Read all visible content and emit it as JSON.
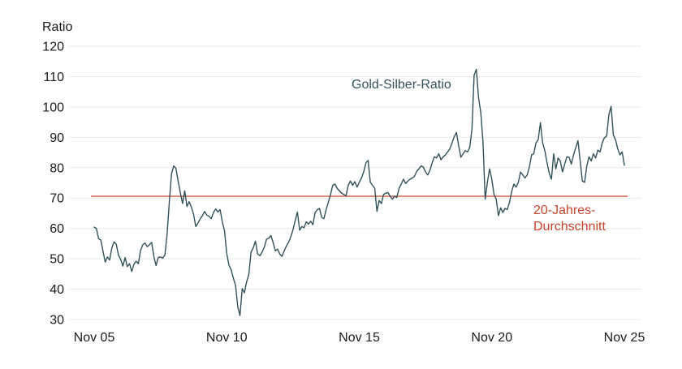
{
  "figure": {
    "background": "#ffffff"
  },
  "chart_data": {
    "type": "line",
    "title": "",
    "ylabel": "Ratio",
    "xlabel": "",
    "grid": true,
    "legend_position": "inline-annotation",
    "ylim": [
      30,
      120
    ],
    "yticks": [
      30,
      40,
      50,
      60,
      70,
      80,
      90,
      100,
      110,
      120
    ],
    "x_tick_labels": [
      "Nov 05",
      "Nov 10",
      "Nov 15",
      "Nov 20",
      "Nov 25"
    ],
    "colors": {
      "series": "#33515a",
      "average": "#c7452d",
      "grid": "#e9e9e9",
      "ticks": "#1a1a1a"
    },
    "average_line": {
      "value": 70.6,
      "label": "20-Jahres-\nDurchschnitt",
      "color": "#c7452d"
    },
    "series": [
      {
        "name": "Gold-Silber-Ratio",
        "color": "#33515a",
        "x_start_label": "Nov 05",
        "x_end_label": "Nov 25",
        "interval": "monthly",
        "values": [
          60.4,
          60.0,
          56.6,
          56.2,
          52.5,
          48.9,
          50.6,
          49.6,
          53.6,
          55.6,
          54.8,
          51.2,
          49.8,
          47.6,
          50.4,
          47.4,
          48.4,
          45.8,
          48.2,
          49.2,
          48.4,
          52.8,
          54.6,
          55.2,
          54.0,
          54.6,
          55.4,
          50.8,
          47.8,
          50.4,
          50.6,
          50.2,
          51.2,
          58.0,
          68.5,
          78.0,
          80.6,
          79.8,
          75.6,
          71.8,
          68.2,
          72.4,
          67.2,
          68.8,
          67.0,
          64.6,
          60.6,
          61.8,
          63.2,
          64.2,
          65.6,
          64.4,
          64.0,
          63.2,
          65.2,
          66.4,
          65.4,
          66.2,
          62.2,
          59.2,
          51.8,
          47.9,
          46.4,
          43.6,
          41.2,
          34.2,
          31.3,
          40.2,
          38.8,
          42.4,
          44.8,
          52.2,
          53.6,
          55.8,
          51.6,
          51.0,
          52.2,
          53.8,
          56.4,
          56.8,
          57.6,
          55.4,
          52.6,
          53.2,
          51.6,
          50.8,
          52.6,
          54.2,
          55.4,
          57.2,
          59.6,
          62.6,
          65.4,
          59.4,
          60.6,
          60.2,
          62.2,
          61.4,
          62.4,
          61.2,
          65.2,
          66.2,
          66.6,
          63.6,
          63.2,
          66.2,
          68.6,
          71.2,
          74.2,
          74.6,
          73.2,
          72.4,
          71.6,
          71.2,
          70.8,
          74.2,
          75.6,
          74.2,
          75.4,
          73.6,
          75.2,
          76.6,
          78.6,
          81.6,
          82.4,
          75.2,
          74.2,
          73.2,
          65.6,
          69.2,
          68.2,
          71.2,
          71.6,
          71.8,
          70.6,
          69.6,
          70.6,
          70.2,
          73.2,
          74.6,
          76.2,
          74.8,
          75.6,
          76.2,
          76.6,
          77.2,
          78.8,
          79.6,
          80.6,
          80.2,
          78.6,
          77.6,
          79.2,
          81.6,
          83.6,
          83.2,
          84.6,
          82.6,
          83.6,
          84.2,
          85.2,
          86.2,
          88.2,
          90.2,
          91.6,
          87.2,
          83.4,
          84.6,
          85.6,
          85.2,
          86.6,
          92.5,
          110.5,
          112.4,
          103.0,
          98.2,
          88.5,
          69.6,
          75.2,
          79.6,
          76.2,
          71.2,
          69.6,
          64.2,
          66.8,
          65.2,
          66.6,
          66.2,
          68.6,
          72.2,
          74.6,
          73.6,
          75.2,
          78.6,
          77.6,
          76.6,
          77.6,
          80.2,
          84.2,
          84.6,
          88.2,
          89.2,
          94.8,
          88.2,
          85.6,
          81.6,
          78.2,
          76.2,
          84.6,
          79.6,
          83.2,
          82.2,
          78.6,
          81.2,
          83.6,
          83.4,
          81.2,
          84.2,
          86.6,
          88.9,
          82.2,
          75.6,
          75.2,
          80.6,
          83.6,
          82.2,
          84.6,
          83.2,
          85.8,
          85.2,
          88.2,
          89.9,
          90.4,
          97.5,
          100.2,
          90.8,
          89.2,
          86.2,
          84.2,
          85.2,
          80.8
        ]
      }
    ]
  }
}
